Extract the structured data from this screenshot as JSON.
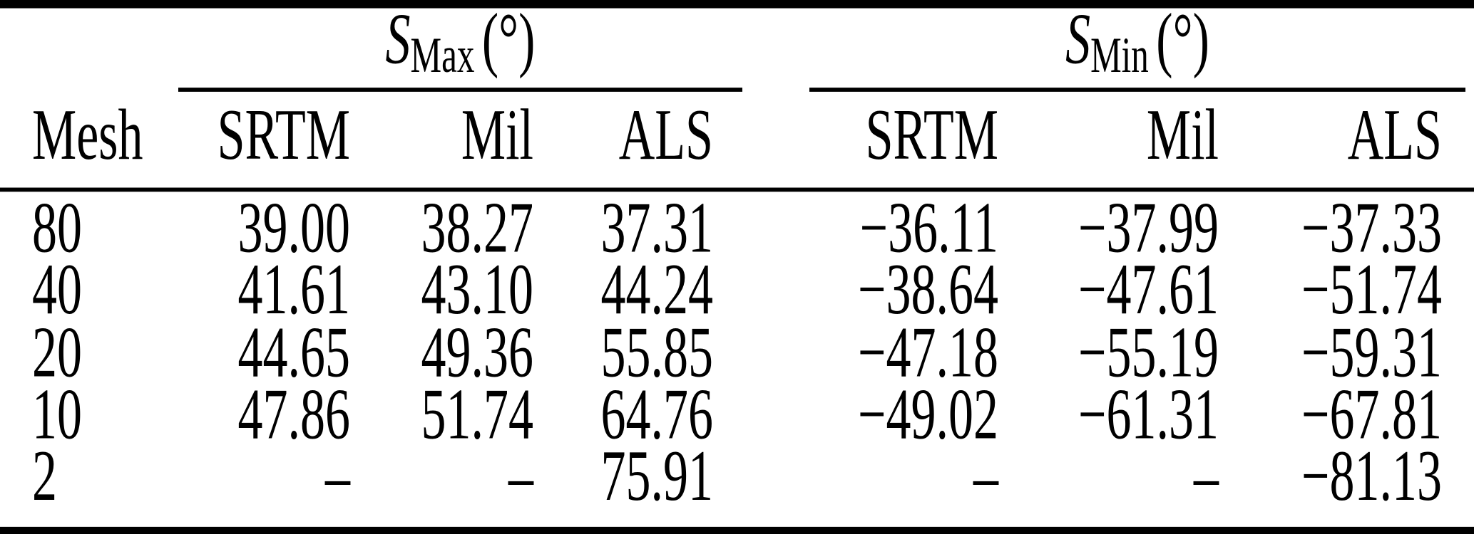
{
  "table": {
    "row_header_label": "Mesh",
    "group_headers": [
      {
        "symbol": "S",
        "subscript": "Max",
        "unit": "(°)"
      },
      {
        "symbol": "S",
        "subscript": "Min",
        "unit": "(°)"
      }
    ],
    "sub_headers": [
      "SRTM",
      "Mil",
      "ALS",
      "SRTM",
      "Mil",
      "ALS"
    ],
    "rows": [
      {
        "mesh": "80",
        "values": [
          "39.00",
          "38.27",
          "37.31",
          "−36.11",
          "−37.99",
          "−37.33"
        ]
      },
      {
        "mesh": "40",
        "values": [
          "41.61",
          "43.10",
          "44.24",
          "−38.64",
          "−47.61",
          "−51.74"
        ]
      },
      {
        "mesh": "20",
        "values": [
          "44.65",
          "49.36",
          "55.85",
          "−47.18",
          "−55.19",
          "−59.31"
        ]
      },
      {
        "mesh": "10",
        "values": [
          "47.86",
          "51.74",
          "64.76",
          "−49.02",
          "−61.31",
          "−67.81"
        ]
      },
      {
        "mesh": "2",
        "values": [
          "–",
          "–",
          "75.91",
          "–",
          "–",
          "−81.13"
        ]
      }
    ]
  },
  "colors": {
    "text": "#000000",
    "rule": "#000000",
    "background": "#ffffff"
  }
}
